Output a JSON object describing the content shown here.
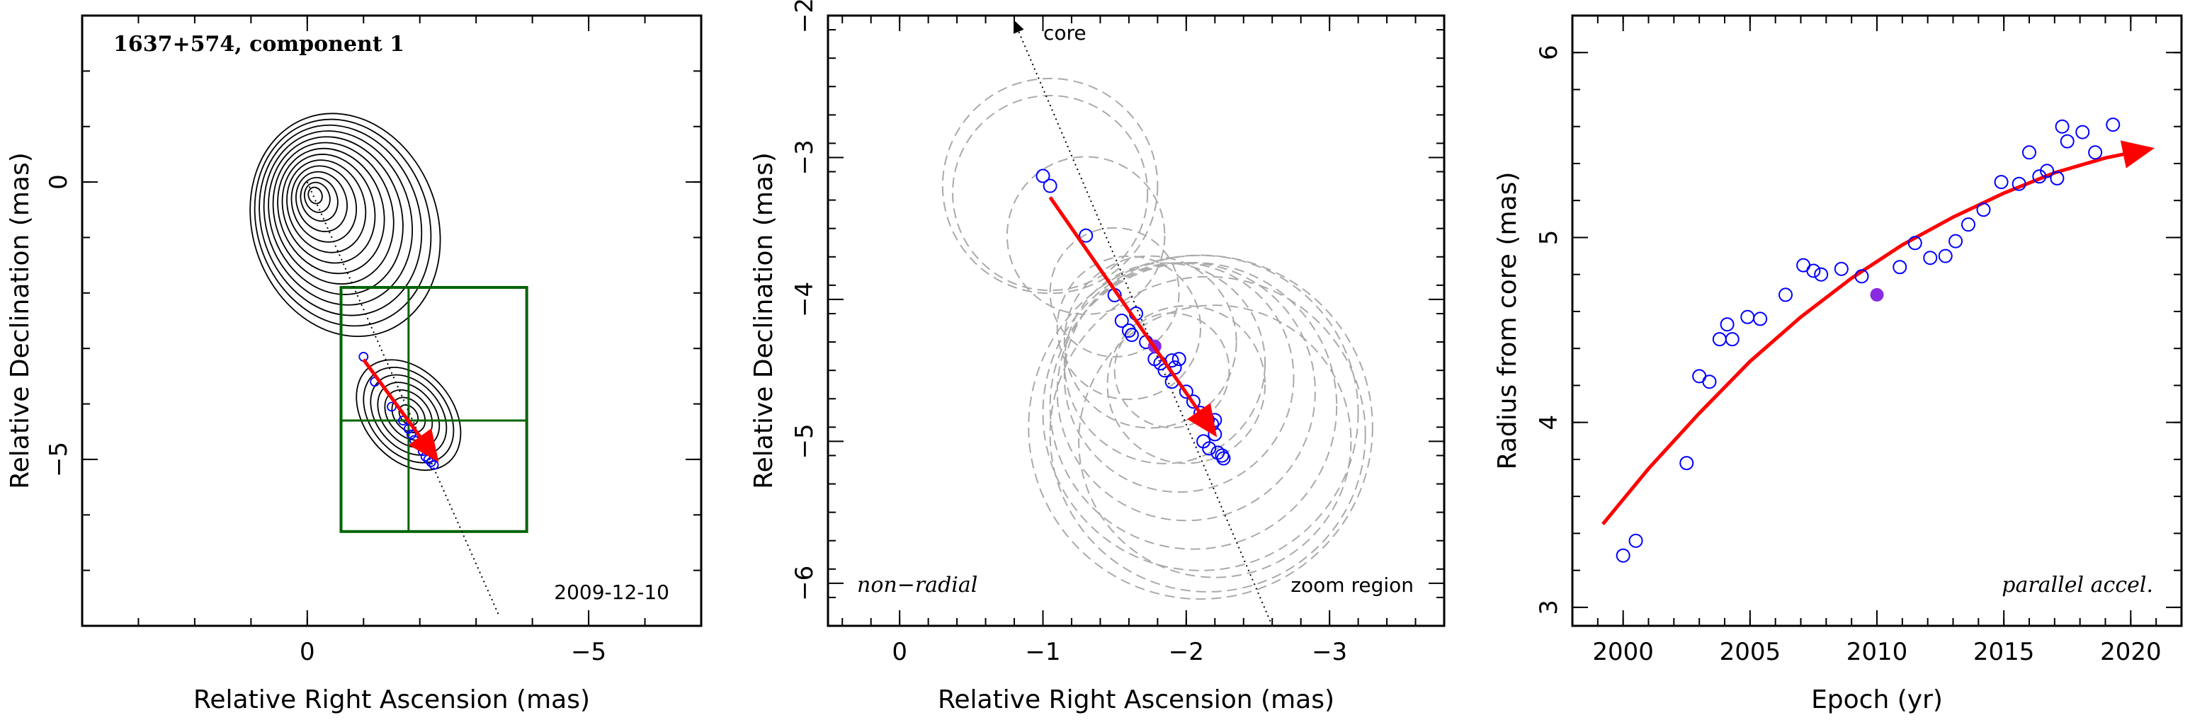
{
  "chart_data": [
    {
      "type": "scatter",
      "panel": "contour-map",
      "title": "1637+574, component 1",
      "date_label": "2009-12-10",
      "xlabel": "Relative Right Ascension (mas)",
      "ylabel": "Relative Declination (mas)",
      "xlim": [
        4,
        -7
      ],
      "ylim": [
        -8,
        3
      ],
      "xticks": [
        0,
        -5
      ],
      "yticks": [
        0,
        -5
      ],
      "xtick_labels": [
        "0",
        "−5"
      ],
      "ytick_labels": [
        "0",
        "−5"
      ],
      "core": {
        "x": 0,
        "y": 0
      },
      "core_direction_line": {
        "x": [
          0,
          -3.4
        ],
        "y": [
          0,
          -7.8
        ]
      },
      "trajectory": {
        "x": [
          -1.0,
          -2.3
        ],
        "y": [
          -3.2,
          -5.0
        ]
      },
      "positions": {
        "x": [
          -1.0,
          -1.2,
          -1.5,
          -1.7,
          -1.8,
          -1.85,
          -1.9,
          -2.0,
          -2.05,
          -2.1,
          -2.15,
          -2.2,
          -2.25
        ],
        "y": [
          -3.15,
          -3.6,
          -4.05,
          -4.3,
          -4.45,
          -4.55,
          -4.65,
          -4.75,
          -4.85,
          -4.95,
          -5.0,
          -5.05,
          -5.1
        ]
      },
      "zoom_box": {
        "x": [
          -0.6,
          -3.9
        ],
        "y": [
          -1.9,
          -6.3
        ]
      },
      "crosshair": {
        "x": -1.8,
        "y": -4.3
      },
      "colors": {
        "trajectory": "#ff0000",
        "positions": "#0000ff",
        "box": "#006400",
        "contours": "#000000"
      }
    },
    {
      "type": "scatter",
      "panel": "zoom",
      "annotations": [
        "core",
        "non−radial",
        "zoom region"
      ],
      "xlabel": "Relative Right Ascension (mas)",
      "ylabel": "Relative Declination (mas)",
      "xlim": [
        0.5,
        -3.8
      ],
      "ylim": [
        -6.3,
        -2
      ],
      "xticks": [
        0,
        -1,
        -2,
        -3
      ],
      "yticks": [
        -2,
        -3,
        -4,
        -5,
        -6
      ],
      "xtick_labels": [
        "0",
        "−1",
        "−2",
        "−3"
      ],
      "ytick_labels": [
        "−2",
        "−3",
        "−4",
        "−5",
        "−6"
      ],
      "core_direction_line": {
        "x": [
          -0.8,
          -2.6
        ],
        "y": [
          -2,
          -6.3
        ]
      },
      "trajectory": {
        "x": [
          -1.05,
          -2.2
        ],
        "y": [
          -3.28,
          -4.95
        ]
      },
      "positions": {
        "x": [
          -1.0,
          -1.05,
          -1.3,
          -1.5,
          -1.55,
          -1.6,
          -1.62,
          -1.65,
          -1.72,
          -1.78,
          -1.82,
          -1.85,
          -1.9,
          -1.92,
          -1.95,
          -1.9,
          -2.0,
          -2.05,
          -2.1,
          -2.15,
          -2.18,
          -2.2,
          -2.12,
          -2.16,
          -2.2,
          -2.22,
          -2.25,
          -2.26
        ],
        "y": [
          -3.13,
          -3.2,
          -3.55,
          -3.97,
          -4.15,
          -4.22,
          -4.25,
          -4.1,
          -4.3,
          -4.42,
          -4.45,
          -4.5,
          -4.43,
          -4.48,
          -4.42,
          -4.58,
          -4.65,
          -4.72,
          -4.8,
          -4.85,
          -4.88,
          -4.85,
          -5.0,
          -5.05,
          -4.95,
          -5.08,
          -5.1,
          -5.12
        ]
      },
      "highlight_point": {
        "x": -1.78,
        "y": -4.33
      },
      "uncertainty_circles": [
        {
          "x": -1.05,
          "y": -3.2,
          "r": 0.75
        },
        {
          "x": -1.05,
          "y": -3.25,
          "r": 0.68
        },
        {
          "x": -1.3,
          "y": -3.55,
          "r": 0.55
        },
        {
          "x": -1.5,
          "y": -3.95,
          "r": 0.45
        },
        {
          "x": -1.6,
          "y": -4.2,
          "r": 0.5
        },
        {
          "x": -1.75,
          "y": -4.3,
          "r": 0.6
        },
        {
          "x": -1.85,
          "y": -4.45,
          "r": 0.7
        },
        {
          "x": -1.95,
          "y": -4.55,
          "r": 0.8
        },
        {
          "x": -2.0,
          "y": -4.65,
          "r": 0.9
        },
        {
          "x": -2.05,
          "y": -4.75,
          "r": 1.0
        },
        {
          "x": -2.1,
          "y": -4.8,
          "r": 1.1
        },
        {
          "x": -2.1,
          "y": -4.9,
          "r": 1.2
        },
        {
          "x": -2.15,
          "y": -4.95,
          "r": 1.1
        },
        {
          "x": -2.2,
          "y": -5.0,
          "r": 0.95
        },
        {
          "x": -2.0,
          "y": -4.6,
          "r": 0.55
        },
        {
          "x": -1.9,
          "y": -4.5,
          "r": 0.4
        }
      ],
      "colors": {
        "trajectory": "#ff0000",
        "positions": "#0000ff",
        "highlight": "#8a2be2",
        "circles": "#aaaaaa"
      }
    },
    {
      "type": "scatter",
      "panel": "radius-vs-epoch",
      "annotation": "parallel accel.",
      "xlabel": "Epoch (yr)",
      "ylabel": "Radius from core (mas)",
      "xlim": [
        1998,
        2022
      ],
      "ylim": [
        2.9,
        6.2
      ],
      "xticks": [
        2000,
        2005,
        2010,
        2015,
        2020
      ],
      "yticks": [
        3,
        4,
        5,
        6
      ],
      "xtick_labels": [
        "2000",
        "2005",
        "2010",
        "2015",
        "2020"
      ],
      "ytick_labels": [
        "3",
        "4",
        "5",
        "6"
      ],
      "x": [
        2000.0,
        2000.5,
        2002.5,
        2003.0,
        2003.4,
        2003.8,
        2004.1,
        2004.3,
        2004.9,
        2005.4,
        2006.4,
        2007.1,
        2007.5,
        2007.8,
        2008.6,
        2009.4,
        2010.9,
        2011.5,
        2012.1,
        2012.7,
        2013.1,
        2013.6,
        2014.2,
        2014.9,
        2015.6,
        2016.0,
        2016.4,
        2016.7,
        2017.1,
        2017.3,
        2017.5,
        2018.1,
        2018.6,
        2019.3
      ],
      "y": [
        3.28,
        3.36,
        3.78,
        4.25,
        4.22,
        4.45,
        4.53,
        4.45,
        4.57,
        4.56,
        4.69,
        4.85,
        4.82,
        4.8,
        4.83,
        4.79,
        4.84,
        4.97,
        4.89,
        4.9,
        4.98,
        5.07,
        5.15,
        5.3,
        5.29,
        5.46,
        5.33,
        5.36,
        5.32,
        5.6,
        5.52,
        5.57,
        5.46,
        5.61
      ],
      "highlight_point": {
        "x": 2010.0,
        "y": 4.69
      },
      "fit_curve": {
        "x": [
          1999.2,
          2001,
          2003,
          2005,
          2007,
          2009,
          2011,
          2013,
          2015,
          2017,
          2019,
          2020.8
        ],
        "y": [
          3.45,
          3.75,
          4.05,
          4.33,
          4.57,
          4.78,
          4.96,
          5.11,
          5.24,
          5.35,
          5.43,
          5.48
        ]
      },
      "colors": {
        "fit": "#ff0000",
        "positions": "#0000ff",
        "highlight": "#8a2be2"
      }
    }
  ]
}
